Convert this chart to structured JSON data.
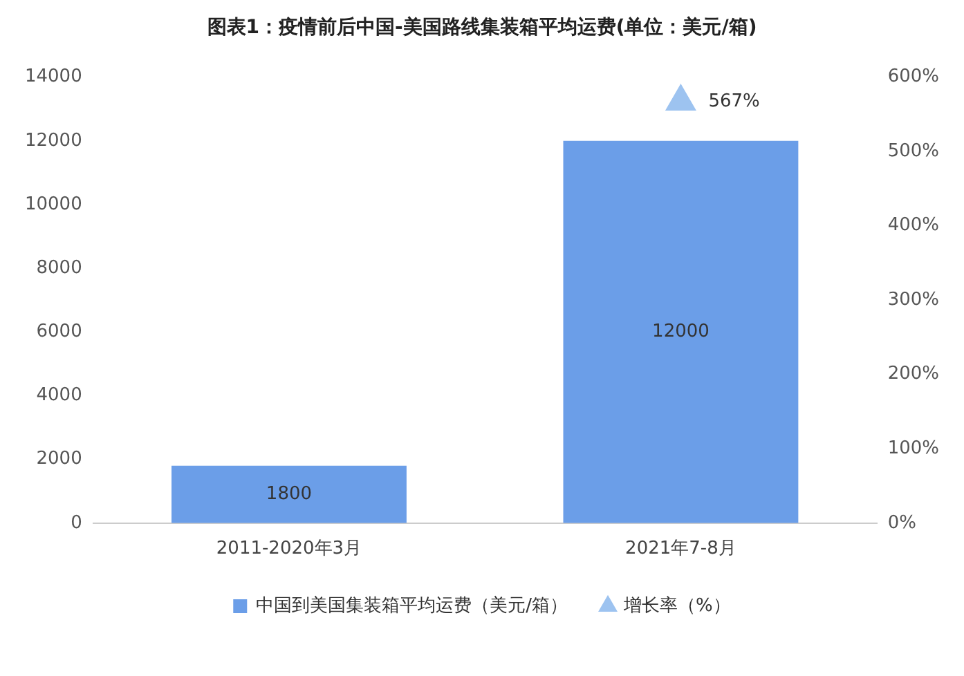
{
  "chart_data": {
    "type": "bar",
    "title": "图表1：疫情前后中国-美国路线集装箱平均运费(单位：美元/箱)",
    "categories": [
      "2011-2020年3月",
      "2021年7-8月"
    ],
    "series": [
      {
        "name": "中国到美国集装箱平均运费（美元/箱）",
        "color": "#6b9ee8",
        "values": [
          1800,
          12000
        ],
        "value_labels": [
          "1800",
          "12000"
        ]
      },
      {
        "name": "增长率（%）",
        "type": "scatter",
        "axis": "y2",
        "marker": "triangle",
        "color": "#9dc3f0",
        "values": [
          null,
          567
        ],
        "value_labels": [
          null,
          "567%"
        ]
      }
    ],
    "ylim": [
      0,
      14000
    ],
    "yticks": [
      0,
      2000,
      4000,
      6000,
      8000,
      10000,
      12000,
      14000
    ],
    "y2lim": [
      0,
      600
    ],
    "y2ticks": [
      {
        "value": 0,
        "label": "0%"
      },
      {
        "value": 100,
        "label": "100%"
      },
      {
        "value": 200,
        "label": "200%"
      },
      {
        "value": 300,
        "label": "300%"
      },
      {
        "value": 400,
        "label": "400%"
      },
      {
        "value": 500,
        "label": "500%"
      },
      {
        "value": 600,
        "label": "600%"
      }
    ],
    "grid": false,
    "legend": "bottom"
  }
}
